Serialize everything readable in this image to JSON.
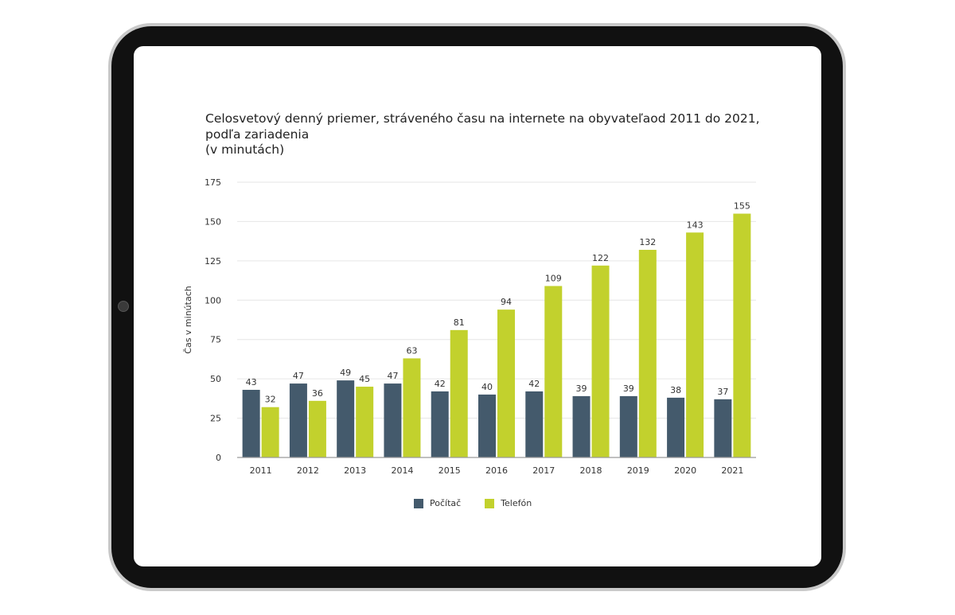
{
  "chart_data": {
    "type": "bar",
    "title_lines": [
      "Celosvetový denný priemer, stráveného času na internete na obyvateľaod 2011 do 2021,",
      "podľa zariadenia",
      "(v minutách)"
    ],
    "ylabel": "Čas v minútach",
    "xlabel": "",
    "ylim": [
      0,
      175
    ],
    "yticks": [
      0,
      25,
      50,
      75,
      100,
      125,
      150,
      175
    ],
    "grid": true,
    "legend_position": "bottom-center",
    "categories": [
      "2011",
      "2012",
      "2013",
      "2014",
      "2015",
      "2016",
      "2017",
      "2018",
      "2019",
      "2020",
      "2021"
    ],
    "series": [
      {
        "name": "Počítač",
        "color": "#445a6c",
        "values": [
          43,
          47,
          49,
          47,
          42,
          40,
          42,
          39,
          39,
          38,
          37
        ]
      },
      {
        "name": "Telefón",
        "color": "#c2d12d",
        "values": [
          32,
          36,
          45,
          63,
          81,
          94,
          109,
          122,
          132,
          143,
          155
        ]
      }
    ]
  }
}
